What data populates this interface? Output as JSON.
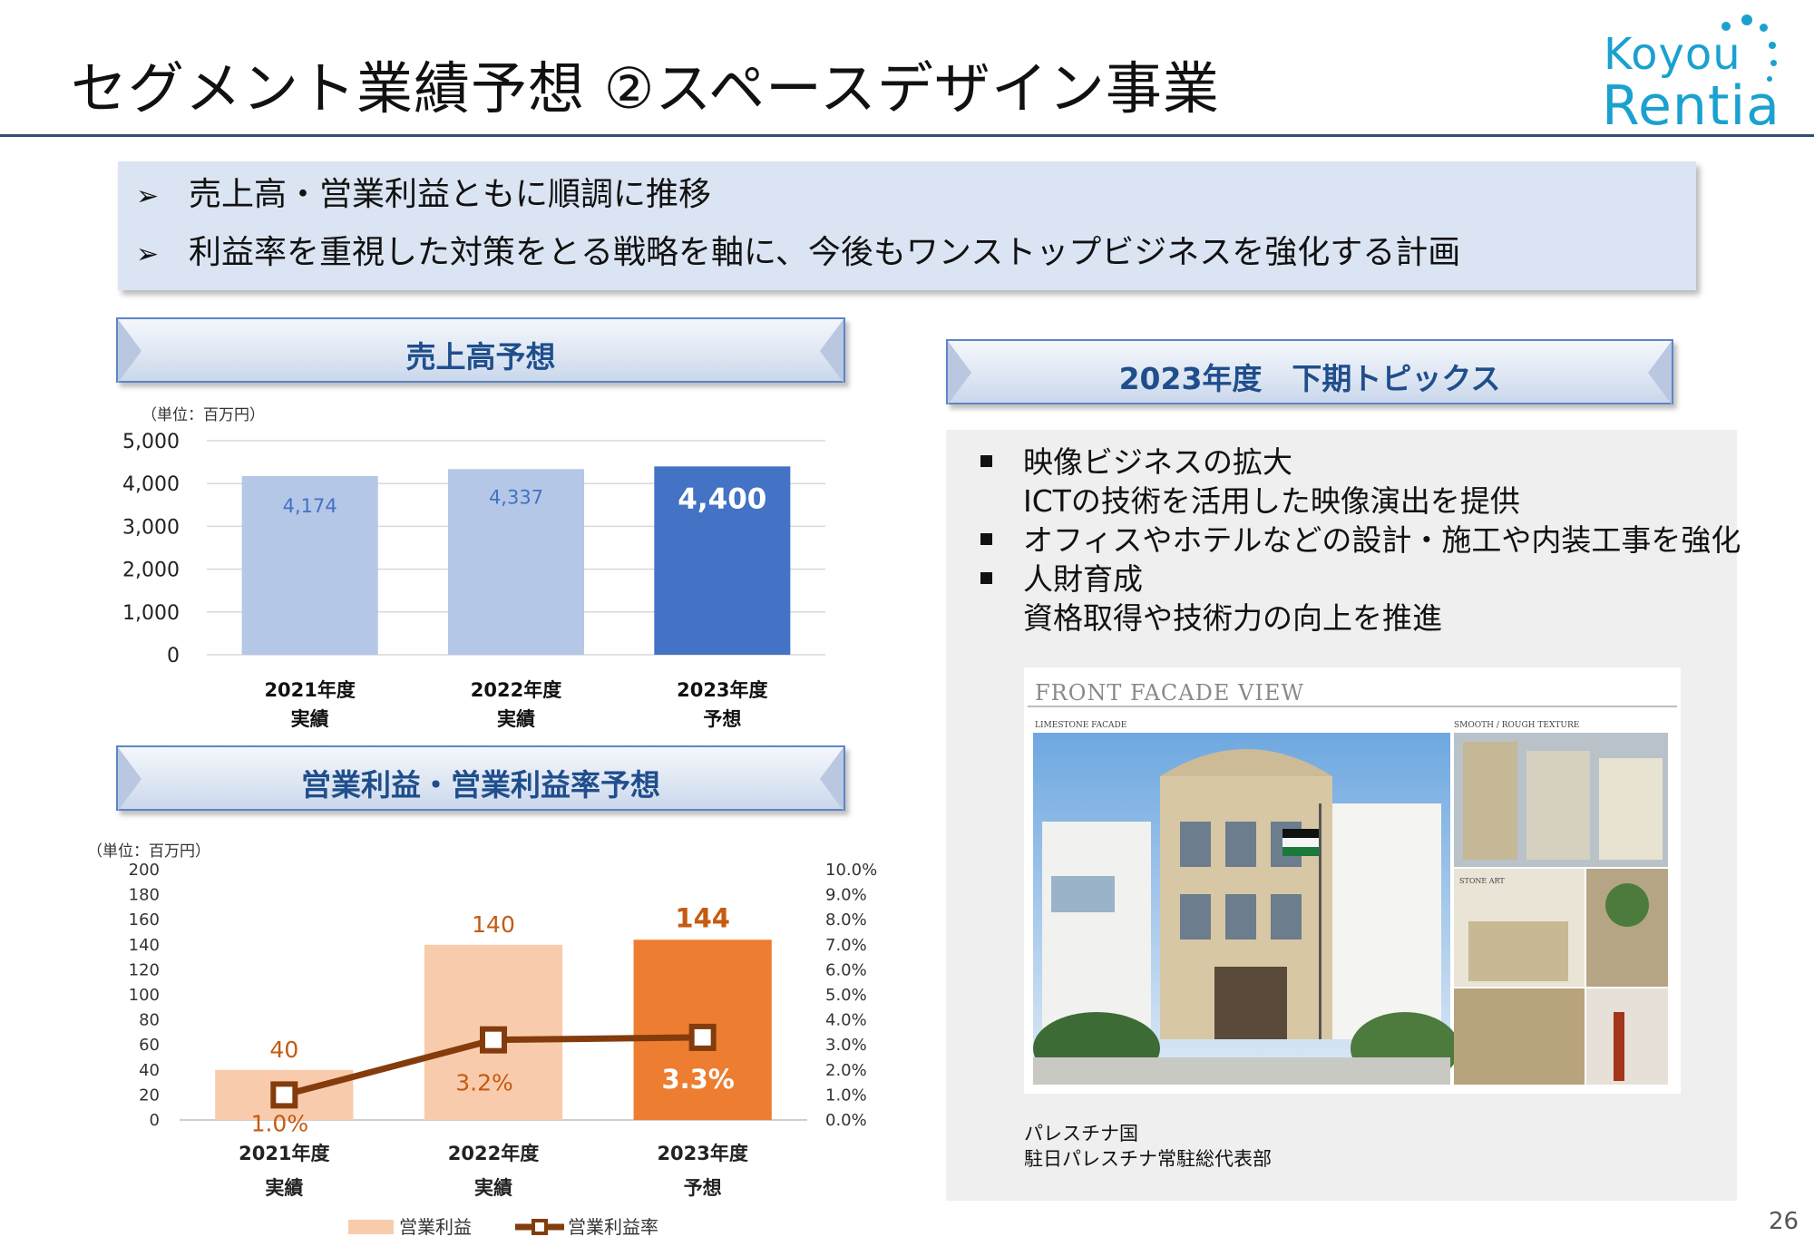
{
  "title": "セグメント業績予想 ②スペースデザイン事業",
  "logo": {
    "line1": "Koyou",
    "line2": "Rentia"
  },
  "summary": {
    "bullet_glyph": "➢",
    "lines": [
      "売上高・営業利益ともに順調に推移",
      "利益率を重視した対策をとる戦略を軸に、今後もワンストップビジネスを強化する計画"
    ]
  },
  "sales_section": {
    "header": "売上高予想",
    "unit": "（単位：百万円）"
  },
  "profit_section": {
    "header": "営業利益・営業利益率予想",
    "unit": "（単位：百万円）"
  },
  "topics": {
    "header": "2023年度　下期トピックス",
    "items": [
      {
        "bullet": true,
        "text": "映像ビジネスの拡大"
      },
      {
        "bullet": false,
        "text": "ICTの技術を活用した映像演出を提供"
      },
      {
        "bullet": true,
        "text": "オフィスやホテルなどの設計・施工や内装工事を強化"
      },
      {
        "bullet": true,
        "text": "人財育成"
      },
      {
        "bullet": false,
        "text": "資格取得や技術力の向上を推進"
      }
    ],
    "image": {
      "heading": "FRONT FACADE VIEW",
      "label_left": "LIMESTONE FACADE",
      "label_right": "SMOOTH / ROUGH TEXTURE",
      "label_sample": "STONE ART"
    },
    "caption": [
      "パレスチナ国",
      "駐日パレスチナ常駐総代表部"
    ]
  },
  "page_number": "26",
  "colors": {
    "title_rule": "#2f4e77",
    "bar_actual_blue": "#b4c7e7",
    "bar_forecast_blue": "#4472c4",
    "bar_actual_orange": "#f8cbad",
    "bar_forecast_orange": "#ed7d31",
    "line_brown": "#843c0c",
    "label_orange": "#c55a11"
  },
  "chart_data": [
    {
      "type": "bar",
      "categories": [
        [
          "2021年度",
          "実績"
        ],
        [
          "2022年度",
          "実績"
        ],
        [
          "2023年度",
          "予想"
        ]
      ],
      "values": [
        4174,
        4337,
        4400
      ],
      "value_labels": [
        "4,174",
        "4,337",
        "4,400"
      ],
      "ylim": [
        0,
        5000
      ],
      "yticks": [
        "0",
        "1,000",
        "2,000",
        "3,000",
        "4,000",
        "5,000"
      ],
      "grid": true,
      "highlight_last": true
    },
    {
      "type": "bar",
      "combo_with": "line",
      "categories": [
        [
          "2021年度",
          "実績"
        ],
        [
          "2022年度",
          "実績"
        ],
        [
          "2023年度",
          "予想"
        ]
      ],
      "series": [
        {
          "name": "営業利益",
          "type": "bar",
          "axis": "left",
          "values": [
            40,
            140,
            144
          ],
          "value_labels": [
            "40",
            "140",
            "144"
          ]
        },
        {
          "name": "営業利益率",
          "type": "line",
          "axis": "right",
          "values": [
            1.0,
            3.2,
            3.3
          ],
          "value_labels": [
            "1.0%",
            "3.2%",
            "3.3%"
          ]
        }
      ],
      "ylim": [
        0,
        200
      ],
      "yticks": [
        "0",
        "20",
        "40",
        "60",
        "80",
        "100",
        "120",
        "140",
        "160",
        "180",
        "200"
      ],
      "y2lim": [
        0,
        10
      ],
      "y2ticks": [
        "0.0%",
        "1.0%",
        "2.0%",
        "3.0%",
        "4.0%",
        "5.0%",
        "6.0%",
        "7.0%",
        "8.0%",
        "9.0%",
        "10.0%"
      ],
      "legend": "bottom",
      "grid": false
    }
  ]
}
